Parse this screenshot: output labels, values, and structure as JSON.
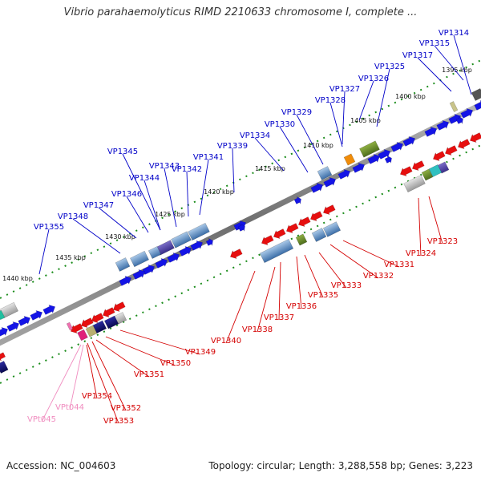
{
  "title": "Vibrio parahaemolyticus RIMD 2210633 chromosome I, complete ...",
  "accession": "Accession: NC_004603",
  "topology": "Topology: circular; Length: 3,288,558 bp; Genes: 3,223",
  "colors": {
    "forward_label": "#0000c8",
    "reverse_label": "#d40000",
    "trna_label": "#f08cbf",
    "forward_arrow": "#1414e6",
    "reverse_arrow": "#e60f0f",
    "backbone": "#8c8c8c",
    "tick": "#1a8c1a"
  },
  "kbp_ticks": [
    "1395 kbp",
    "1400 kbp",
    "1405 kbp",
    "1410 kbp",
    "1415 kbp",
    "1420 kbp",
    "1425 kbp",
    "1430 kbp",
    "1435 kbp",
    "1440 kbp"
  ],
  "forward_genes": [
    "VP1314",
    "VP1315",
    "VP1317",
    "VP1325",
    "VP1326",
    "VP1327",
    "VP1328",
    "VP1329",
    "VP1330",
    "VP1334",
    "VP1339",
    "VP1341",
    "VP1342",
    "VP1343",
    "VP1344",
    "VP1345",
    "VP1346",
    "VP1347",
    "VP1348",
    "VP1355"
  ],
  "reverse_genes": [
    "VP1323",
    "VP1324",
    "VP1331",
    "VP1332",
    "VP1333",
    "VP1335",
    "VP1336",
    "VP1337",
    "VP1338",
    "VP1340",
    "VP1349",
    "VP1350",
    "VP1351",
    "VP1352",
    "VP1353",
    "VP1354"
  ],
  "trna_genes": [
    "VPt044",
    "VPt045"
  ]
}
